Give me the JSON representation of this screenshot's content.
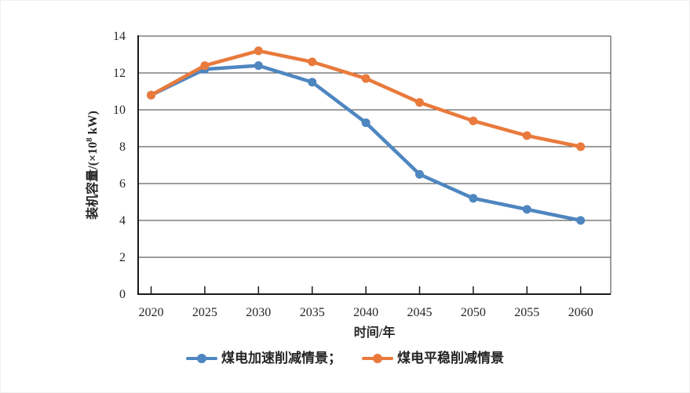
{
  "chart_data": {
    "type": "line",
    "title": "",
    "categories": [
      "2020",
      "2025",
      "2030",
      "2035",
      "2040",
      "2045",
      "2050",
      "2055",
      "2060"
    ],
    "series": [
      {
        "name": "煤电加速削减情景",
        "legend_label": "煤电加速削减情景；",
        "color": "#4E86C0",
        "values": [
          10.8,
          12.2,
          12.4,
          11.5,
          9.3,
          6.5,
          5.2,
          4.6,
          4.0
        ]
      },
      {
        "name": "煤电平稳削减情景",
        "legend_label": "煤电平稳削减情景",
        "color": "#E97A3C",
        "values": [
          10.8,
          12.4,
          13.2,
          12.6,
          11.7,
          10.4,
          9.4,
          8.6,
          8.0
        ]
      }
    ],
    "xlabel": "时间/年",
    "ylabel": "装机容量/(×10⁸ kW)",
    "ylim": [
      0,
      14
    ],
    "yticks": [
      0,
      2,
      4,
      6,
      8,
      10,
      12,
      14
    ],
    "grid": "horizontal",
    "plot_border": "box",
    "marker": "circle",
    "legend_position": "bottom"
  },
  "style": {
    "background": "#ffffff",
    "axis_color": "#1a1a1a",
    "grid_color": "#3c3c3c",
    "text_color": "#262626"
  }
}
